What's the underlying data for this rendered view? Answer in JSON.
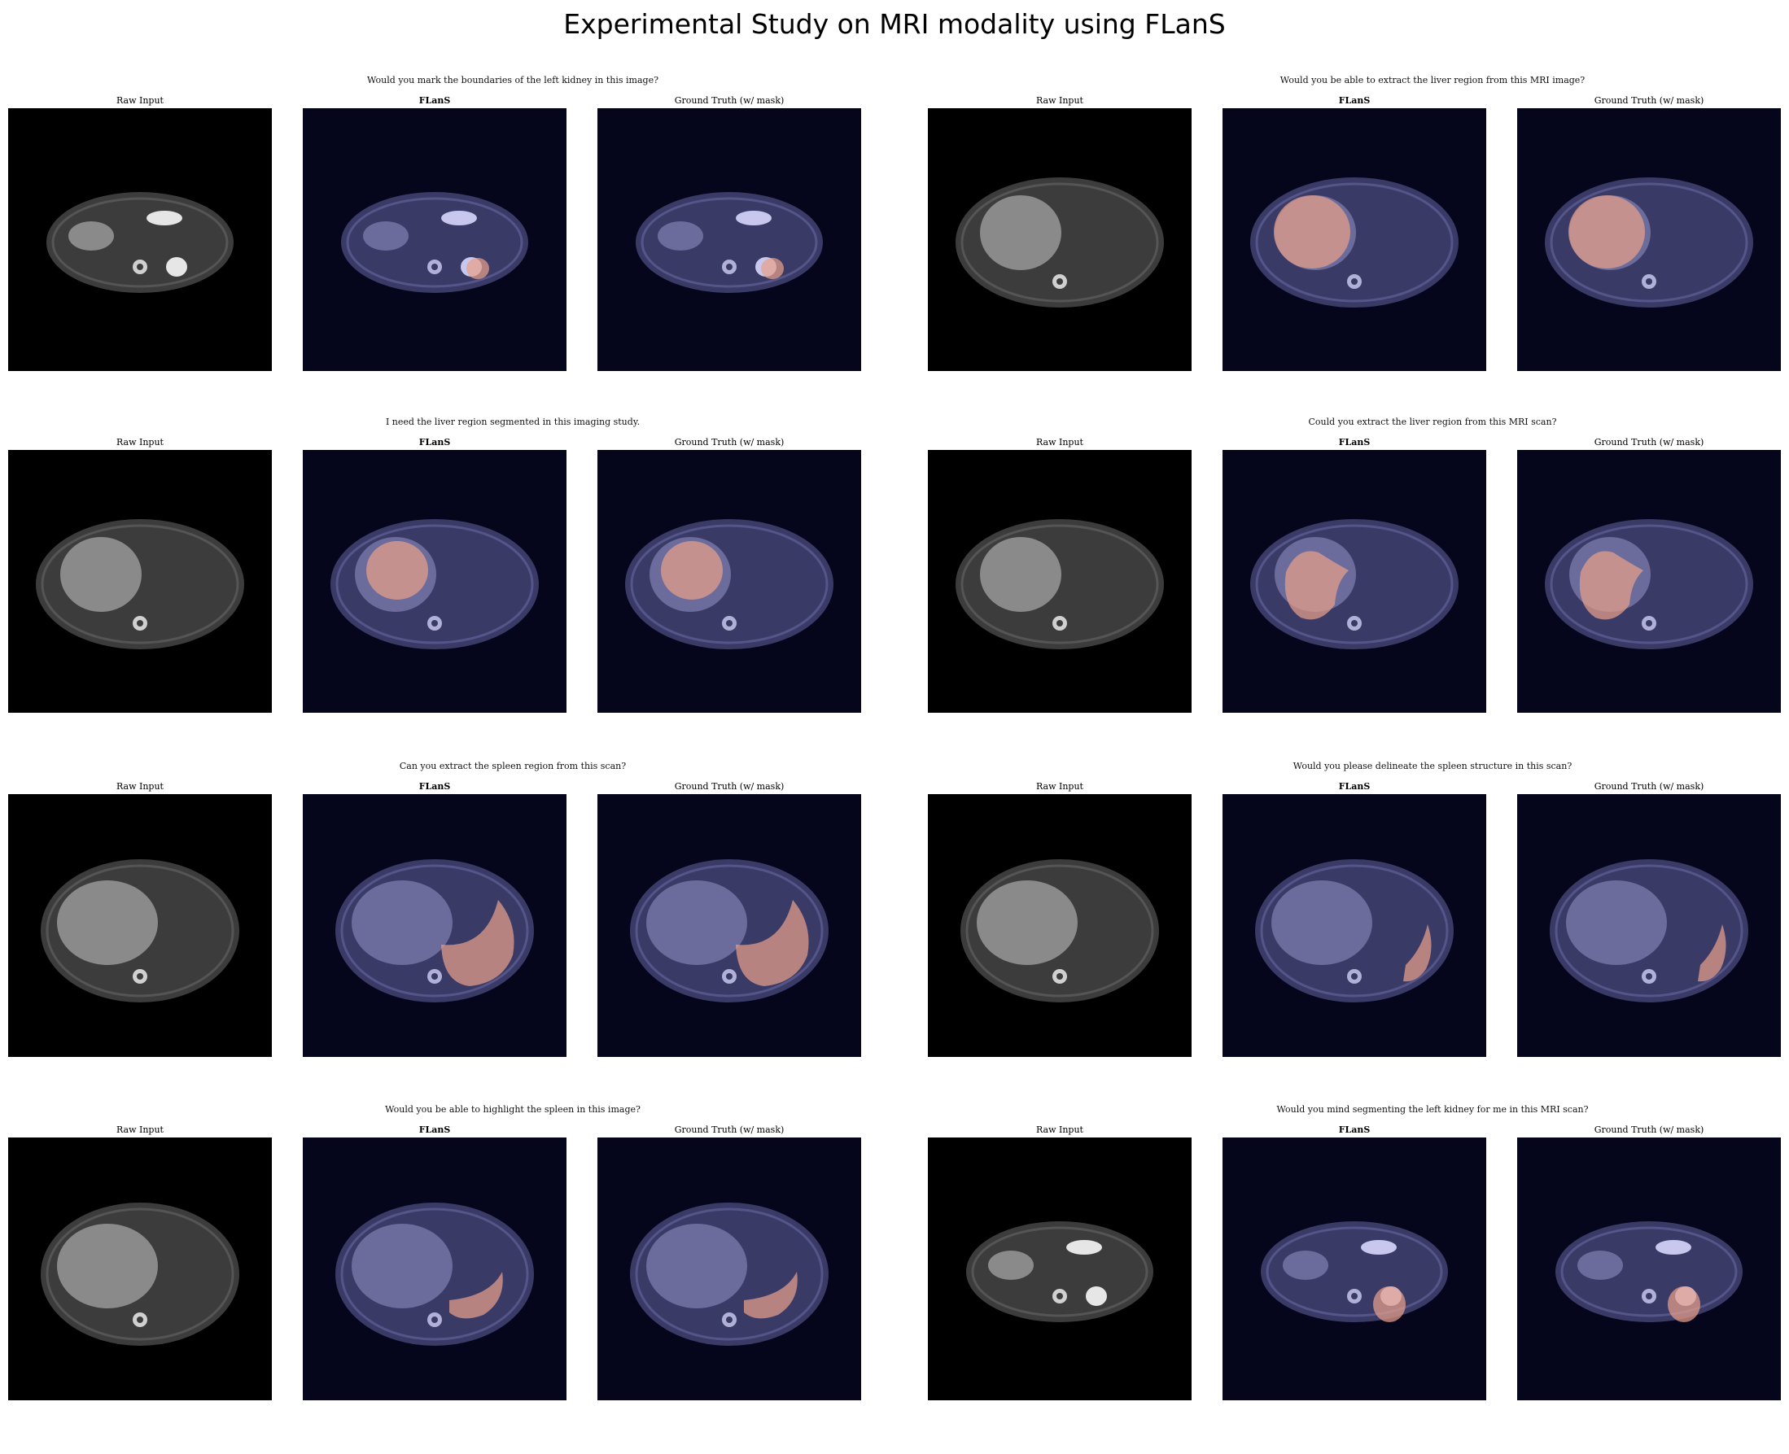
{
  "title": "Experimental Study on MRI modality using FLanS",
  "colors": {
    "raw_background": "#000000",
    "overlay_background": "#05051c",
    "mask_color": "#e8a08a"
  },
  "groups": [
    {
      "prompt": "Would you mark the boundaries of the left kidney in this image?",
      "target": "left kidney",
      "panels": [
        {
          "label": "Raw Input"
        },
        {
          "label": "FLanS"
        },
        {
          "label": "Ground Truth (w/ mask)"
        }
      ]
    },
    {
      "prompt": "Would you be able to extract the liver region from this MRI image?",
      "target": "liver",
      "panels": [
        {
          "label": "Raw Input"
        },
        {
          "label": "FLanS"
        },
        {
          "label": "Ground Truth (w/ mask)"
        }
      ]
    },
    {
      "prompt": "I need the liver region segmented in this imaging study.",
      "target": "liver",
      "panels": [
        {
          "label": "Raw Input"
        },
        {
          "label": "FLanS"
        },
        {
          "label": "Ground Truth (w/ mask)"
        }
      ]
    },
    {
      "prompt": "Could you extract the liver region from this MRI scan?",
      "target": "liver",
      "panels": [
        {
          "label": "Raw Input"
        },
        {
          "label": "FLanS"
        },
        {
          "label": "Ground Truth (w/ mask)"
        }
      ]
    },
    {
      "prompt": "Can you extract the spleen region from this scan?",
      "target": "spleen",
      "panels": [
        {
          "label": "Raw Input"
        },
        {
          "label": "FLanS"
        },
        {
          "label": "Ground Truth (w/ mask)"
        }
      ]
    },
    {
      "prompt": "Would you please delineate the spleen structure in this scan?",
      "target": "spleen",
      "panels": [
        {
          "label": "Raw Input"
        },
        {
          "label": "FLanS"
        },
        {
          "label": "Ground Truth (w/ mask)"
        }
      ]
    },
    {
      "prompt": "Would you be able to highlight the spleen in this image?",
      "target": "spleen",
      "panels": [
        {
          "label": "Raw Input"
        },
        {
          "label": "FLanS"
        },
        {
          "label": "Ground Truth (w/ mask)"
        }
      ]
    },
    {
      "prompt": "Would you mind segmenting the left kidney for me in this MRI scan?",
      "target": "left kidney",
      "panels": [
        {
          "label": "Raw Input"
        },
        {
          "label": "FLanS"
        },
        {
          "label": "Ground Truth (w/ mask)"
        }
      ]
    }
  ]
}
